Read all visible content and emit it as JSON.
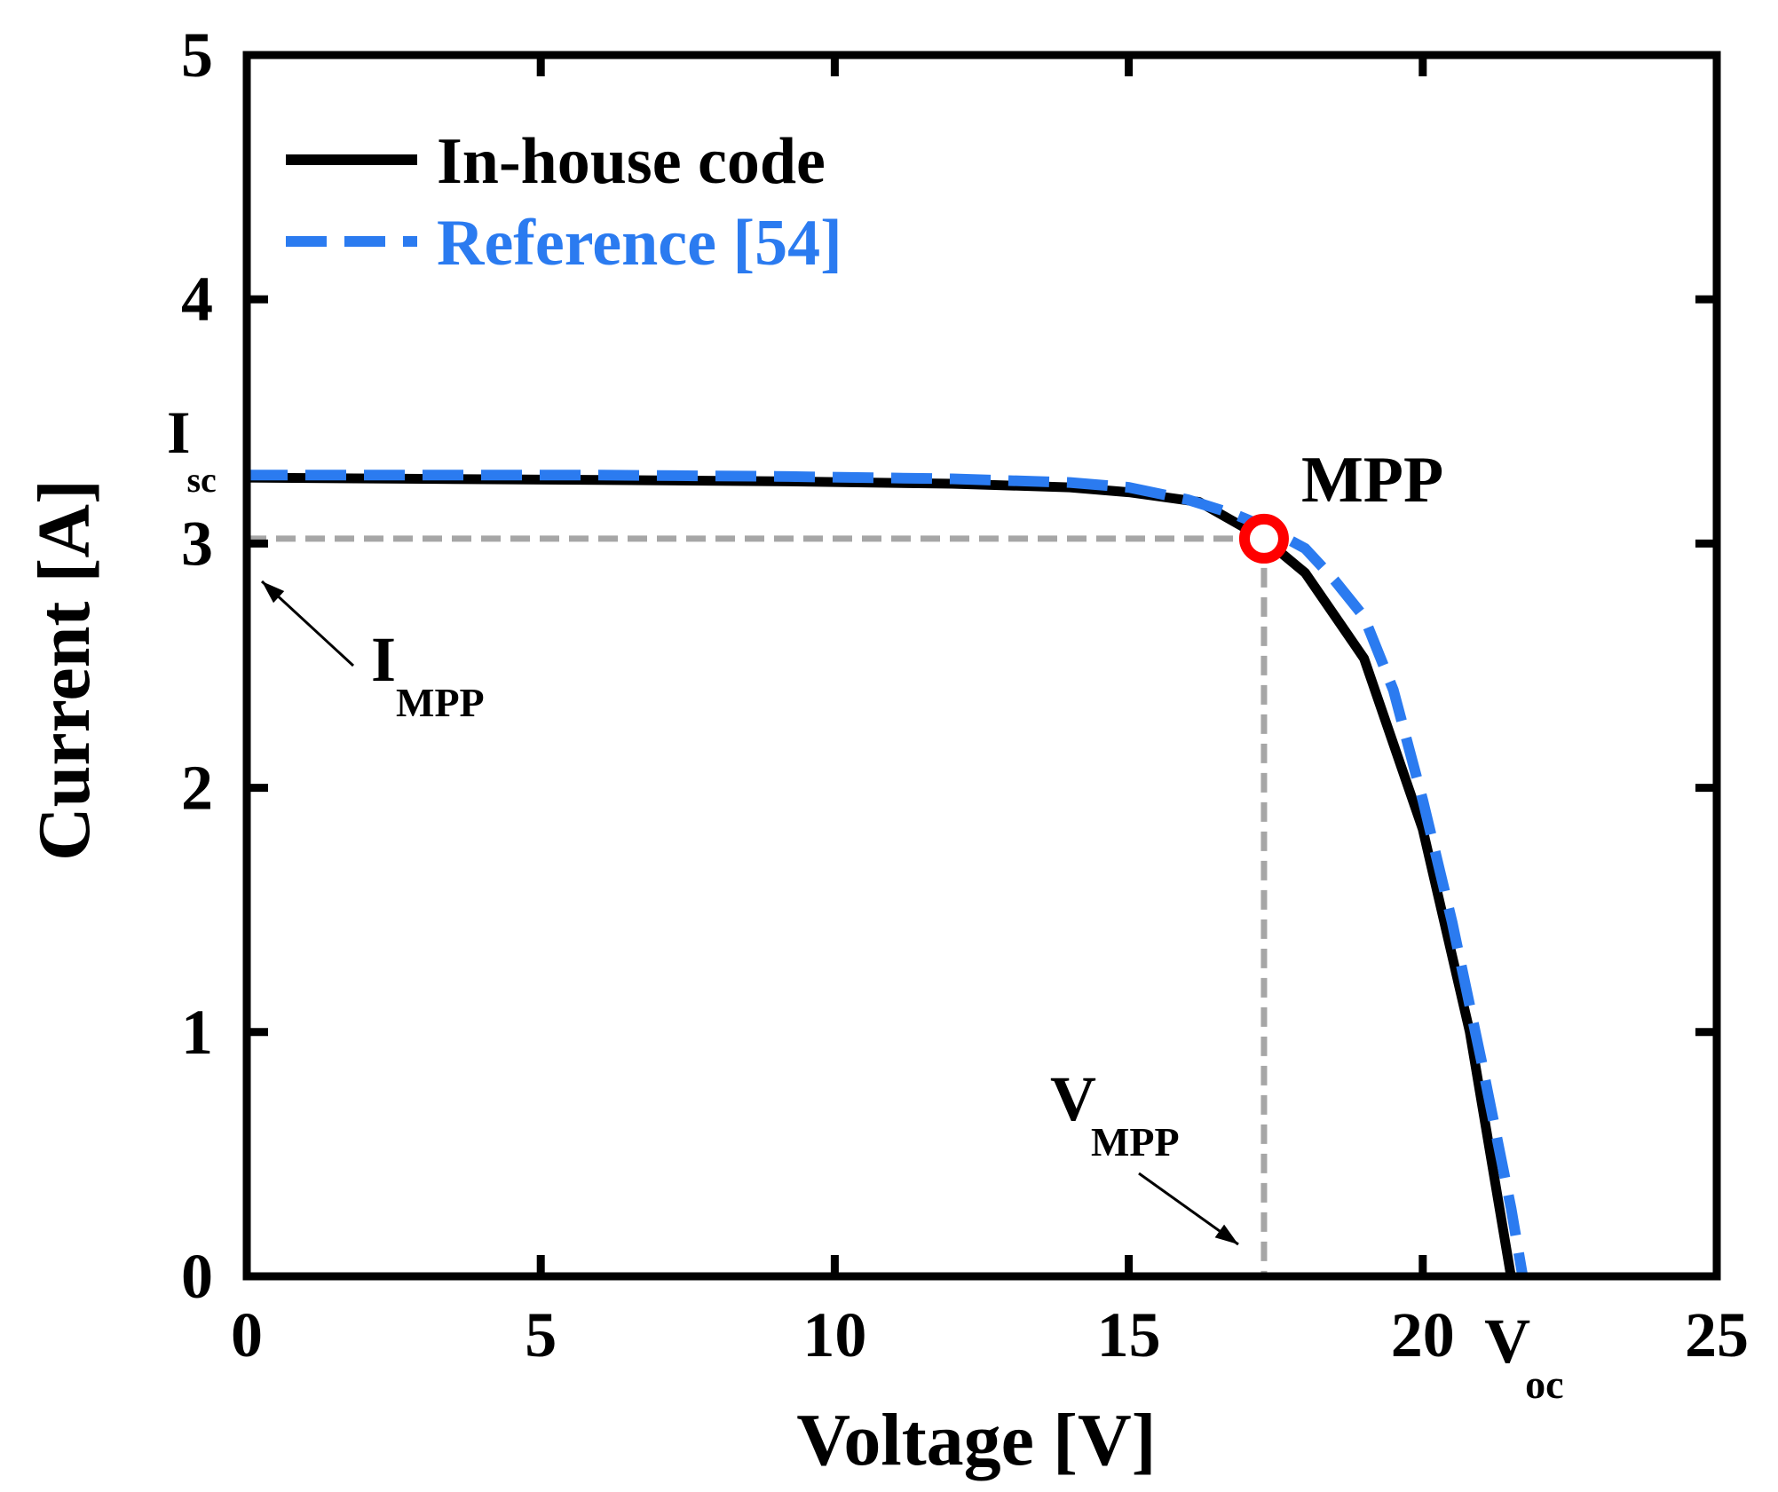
{
  "chart_data": {
    "type": "line",
    "xlabel": "Voltage [V]",
    "ylabel": "Current [A]",
    "xlim": [
      0,
      25
    ],
    "ylim": [
      0,
      5
    ],
    "xticks": [
      0,
      5,
      10,
      15,
      20,
      25
    ],
    "yticks": [
      0,
      1,
      2,
      3,
      4,
      5
    ],
    "grid": false,
    "legend_position": "top-left",
    "series": [
      {
        "name": "In-house code",
        "color": "#000000",
        "style": "solid",
        "x": [
          0,
          3,
          6,
          9,
          12,
          14,
          15,
          16.2,
          17.3,
          18,
          19,
          20,
          20.8,
          21.5
        ],
        "y": [
          3.27,
          3.265,
          3.26,
          3.255,
          3.245,
          3.23,
          3.21,
          3.17,
          3.02,
          2.88,
          2.53,
          1.83,
          1.0,
          0.0
        ]
      },
      {
        "name": "Reference [54]",
        "color": "#2b7bf0",
        "style": "dashed",
        "x": [
          0,
          3,
          6,
          9,
          12,
          14,
          15,
          16,
          16.8,
          17.3,
          18,
          18.5,
          19,
          19.5,
          20,
          20.5,
          21,
          21.5,
          21.7
        ],
        "y": [
          3.28,
          3.28,
          3.28,
          3.275,
          3.265,
          3.25,
          3.23,
          3.18,
          3.12,
          3.07,
          2.98,
          2.85,
          2.7,
          2.4,
          1.95,
          1.45,
          0.88,
          0.28,
          0.0
        ]
      }
    ],
    "mpp": {
      "label": "MPP",
      "voltage": 17.3,
      "current": 3.02,
      "color": "#ff0000"
    },
    "guide_color": "#a6a6a6",
    "annotations": {
      "isc_main": "I",
      "isc_sub": "sc",
      "isc_value": 3.27,
      "impp_main": "I",
      "impp_sub": "MPP",
      "vmpp_main": "V",
      "vmpp_sub": "MPP",
      "voc_main": "V",
      "voc_sub": "oc",
      "voc_value": 21.5
    }
  }
}
